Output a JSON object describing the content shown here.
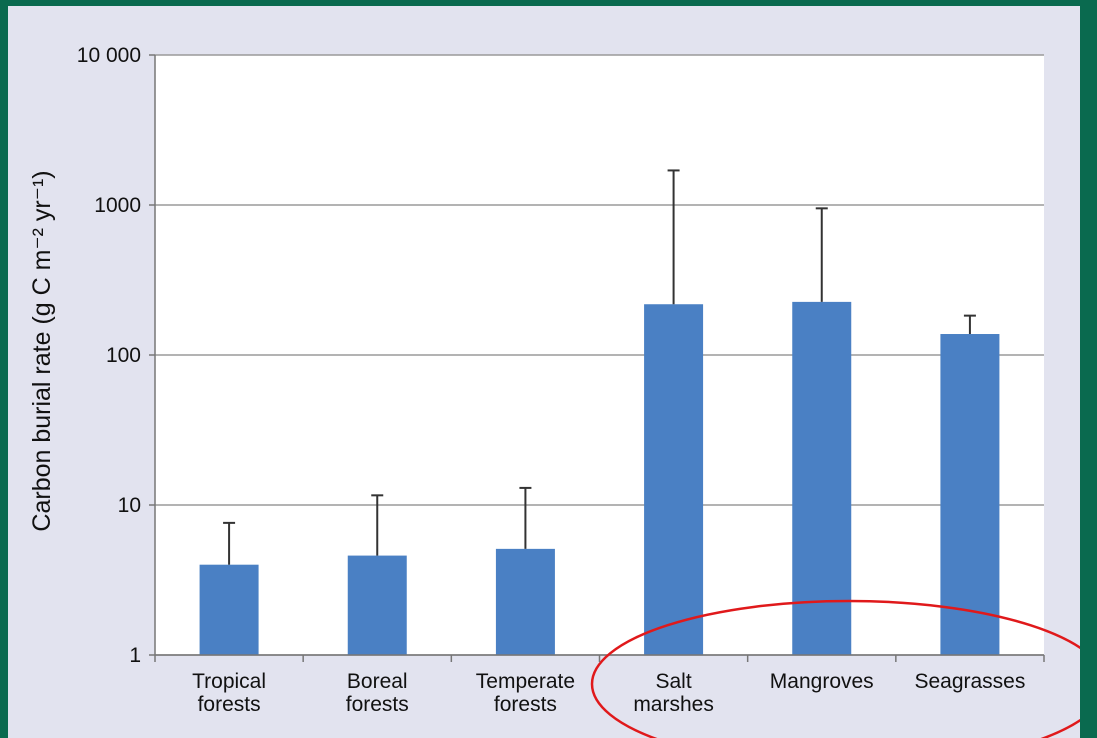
{
  "chart_data": {
    "type": "bar",
    "ylabel": "Carbon burial rate (g C m⁻² yr⁻¹)",
    "yscale": "log",
    "ylim": [
      1,
      10000
    ],
    "yticks": [
      1,
      10,
      100,
      1000,
      10000
    ],
    "ytick_labels": [
      "1",
      "10",
      "100",
      "1000",
      "10 000"
    ],
    "grid": true,
    "categories": [
      [
        "Tropical",
        "forests"
      ],
      [
        "Boreal",
        "forests"
      ],
      [
        "Temperate",
        "forests"
      ],
      [
        "Salt",
        "marshes"
      ],
      [
        "Mangroves"
      ],
      [
        "Seagrasses"
      ]
    ],
    "values": [
      4,
      4.6,
      5.1,
      218,
      226,
      138
    ],
    "error_upper": [
      7.6,
      11.6,
      13,
      1700,
      950,
      183
    ],
    "bar_color": "#4a80c4",
    "annotation": "red ellipse highlighting Salt marshes, Mangroves and Seagrasses",
    "annotation_color": "#e0191b"
  }
}
